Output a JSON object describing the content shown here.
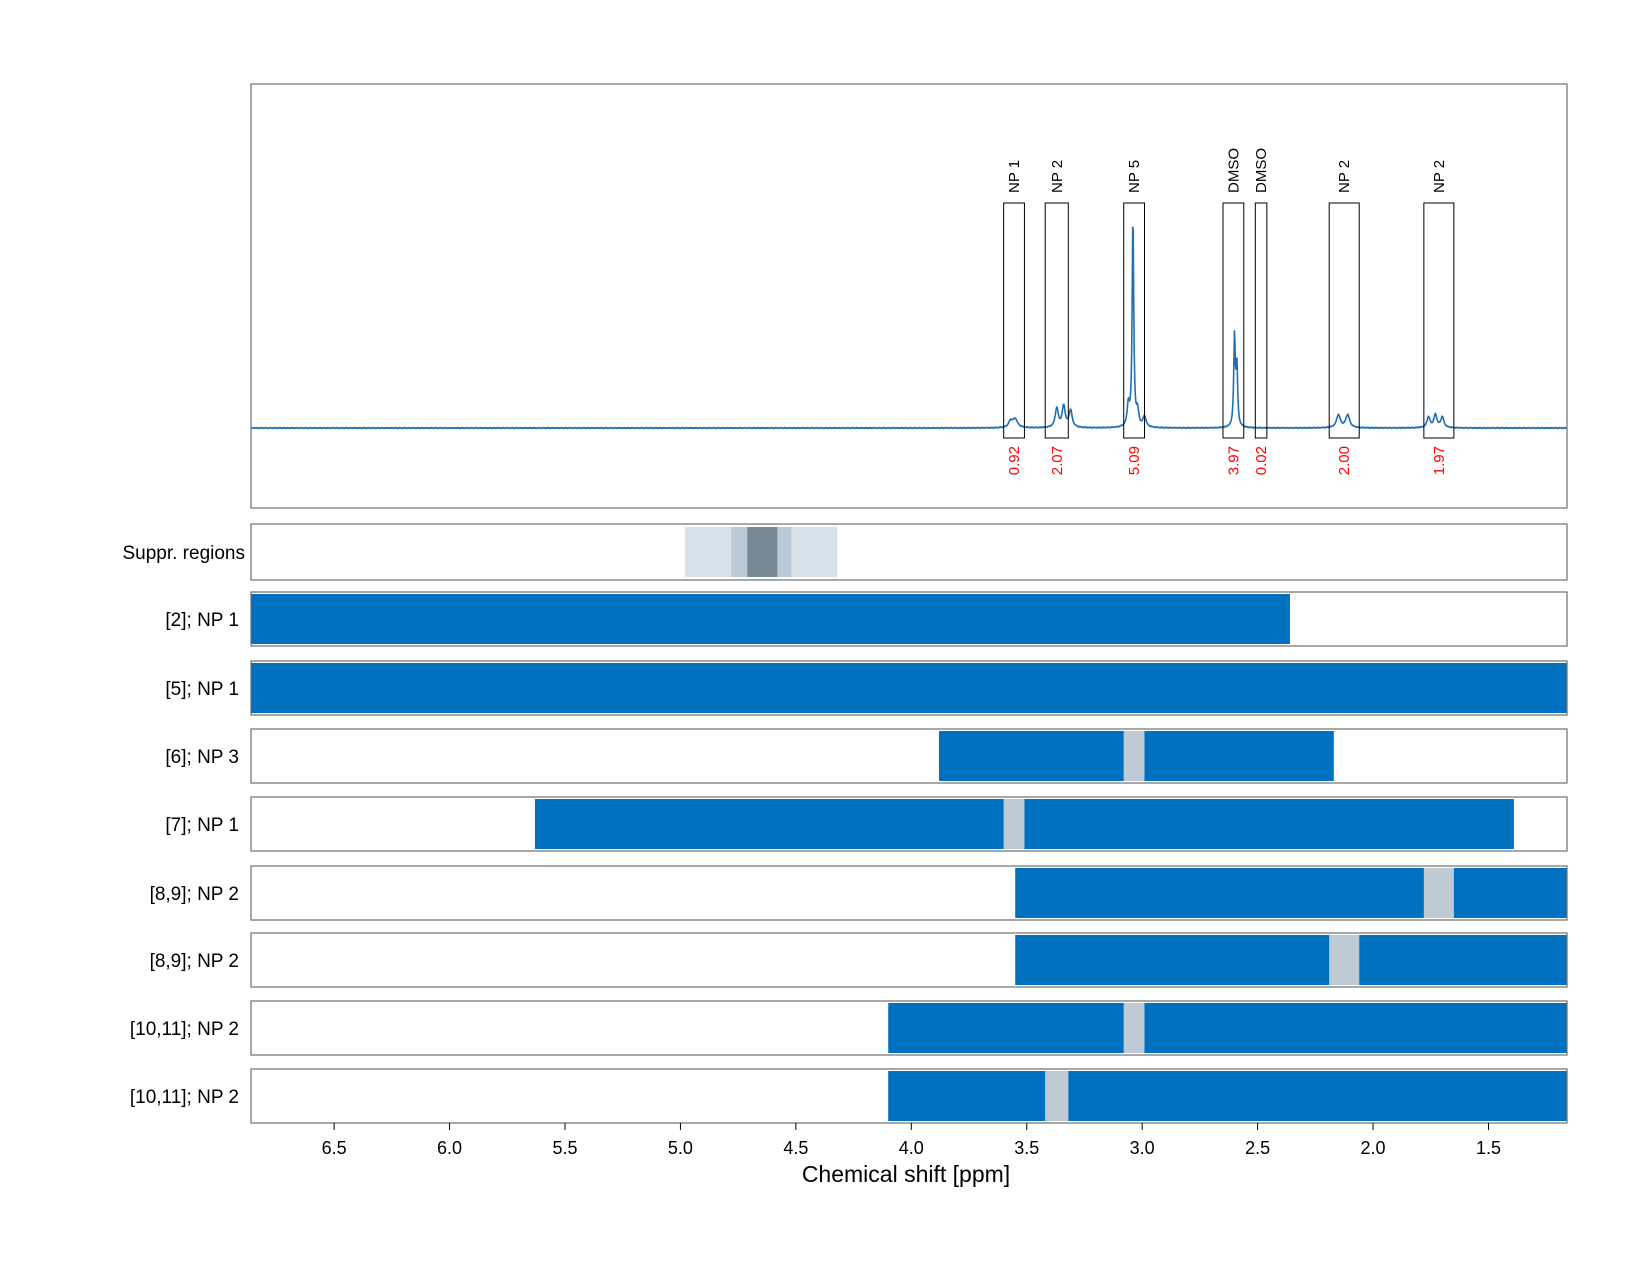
{
  "chart_data": {
    "type": "line",
    "xlabel": "Chemical shift [ppm]",
    "xlim": [
      6.86,
      1.16
    ],
    "x_ticks": [
      "6.5",
      "6.0",
      "5.5",
      "5.0",
      "4.5",
      "4.0",
      "3.5",
      "3.0",
      "2.5",
      "2.0",
      "1.5"
    ],
    "x_tick_values": [
      6.5,
      6.0,
      5.5,
      5.0,
      4.5,
      4.0,
      3.5,
      3.0,
      2.5,
      2.0,
      1.5
    ],
    "grid": true,
    "spectrum_color": "#1f6fb4",
    "spectrum_peaks": [
      {
        "ppm": 3.55,
        "height": 0.04,
        "width": 0.012
      },
      {
        "ppm": 3.57,
        "height": 0.03,
        "width": 0.01
      },
      {
        "ppm": 3.37,
        "height": 0.09,
        "width": 0.008
      },
      {
        "ppm": 3.34,
        "height": 0.1,
        "width": 0.008
      },
      {
        "ppm": 3.31,
        "height": 0.08,
        "width": 0.008
      },
      {
        "ppm": 3.06,
        "height": 0.1,
        "width": 0.006
      },
      {
        "ppm": 3.04,
        "height": 0.98,
        "width": 0.004
      },
      {
        "ppm": 3.02,
        "height": 0.07,
        "width": 0.006
      },
      {
        "ppm": 2.99,
        "height": 0.05,
        "width": 0.008
      },
      {
        "ppm": 2.6,
        "height": 0.42,
        "width": 0.004
      },
      {
        "ppm": 2.59,
        "height": 0.28,
        "width": 0.004
      },
      {
        "ppm": 2.15,
        "height": 0.06,
        "width": 0.01
      },
      {
        "ppm": 2.11,
        "height": 0.06,
        "width": 0.01
      },
      {
        "ppm": 1.76,
        "height": 0.05,
        "width": 0.008
      },
      {
        "ppm": 1.73,
        "height": 0.06,
        "width": 0.008
      },
      {
        "ppm": 1.7,
        "height": 0.05,
        "width": 0.008
      }
    ],
    "peak_boxes": [
      {
        "label": "NP 1",
        "start": 3.6,
        "end": 3.51,
        "integral": "0.92"
      },
      {
        "label": "NP 2",
        "start": 3.42,
        "end": 3.32,
        "integral": "2.07"
      },
      {
        "label": "NP 5",
        "start": 3.08,
        "end": 2.99,
        "integral": "5.09"
      },
      {
        "label": "DMSO",
        "start": 2.65,
        "end": 2.56,
        "integral": "3.97"
      },
      {
        "label": "DMSO",
        "start": 2.51,
        "end": 2.46,
        "integral": "0.02"
      },
      {
        "label": "NP 2",
        "start": 2.19,
        "end": 2.06,
        "integral": "2.00"
      },
      {
        "label": "NP 2",
        "start": 1.78,
        "end": 1.65,
        "integral": "1.97"
      }
    ],
    "integral_color": "#ff0000",
    "suppression": {
      "label": "Suppr. regions",
      "bands": [
        {
          "start": 4.98,
          "end": 4.32,
          "color": "#d7e1ea"
        },
        {
          "start": 4.78,
          "end": 4.52,
          "color": "#b9c9d6"
        },
        {
          "start": 4.71,
          "end": 4.58,
          "color": "#778995"
        }
      ]
    },
    "bar_color": "#0070c0",
    "gap_color": "#bfcbd4",
    "rows": [
      {
        "label": "[2]; NP 1",
        "segments": [
          [
            6.86,
            2.36
          ]
        ],
        "gaps": []
      },
      {
        "label": "[5]; NP 1",
        "segments": [
          [
            6.86,
            1.16
          ]
        ],
        "gaps": []
      },
      {
        "label": "[6]; NP 3",
        "segments": [
          [
            3.88,
            3.08
          ],
          [
            2.99,
            2.17
          ]
        ],
        "gaps": [
          [
            3.08,
            2.99
          ]
        ]
      },
      {
        "label": "[7]; NP 1",
        "segments": [
          [
            5.63,
            3.6
          ],
          [
            3.51,
            1.39
          ]
        ],
        "gaps": [
          [
            3.6,
            3.51
          ]
        ]
      },
      {
        "label": "[8,9]; NP 2",
        "segments": [
          [
            3.55,
            1.78
          ],
          [
            1.65,
            1.16
          ]
        ],
        "gaps": [
          [
            1.78,
            1.65
          ]
        ]
      },
      {
        "label": "[8,9]; NP 2",
        "segments": [
          [
            3.55,
            2.19
          ],
          [
            2.06,
            1.16
          ]
        ],
        "gaps": [
          [
            2.19,
            2.06
          ]
        ]
      },
      {
        "label": "[10,11]; NP 2",
        "segments": [
          [
            4.1,
            3.08
          ],
          [
            2.99,
            1.16
          ]
        ],
        "gaps": [
          [
            3.08,
            2.99
          ]
        ]
      },
      {
        "label": "[10,11]; NP 2",
        "segments": [
          [
            4.1,
            3.42
          ],
          [
            3.32,
            1.16
          ]
        ],
        "gaps": [
          [
            3.42,
            3.32
          ]
        ]
      }
    ]
  }
}
